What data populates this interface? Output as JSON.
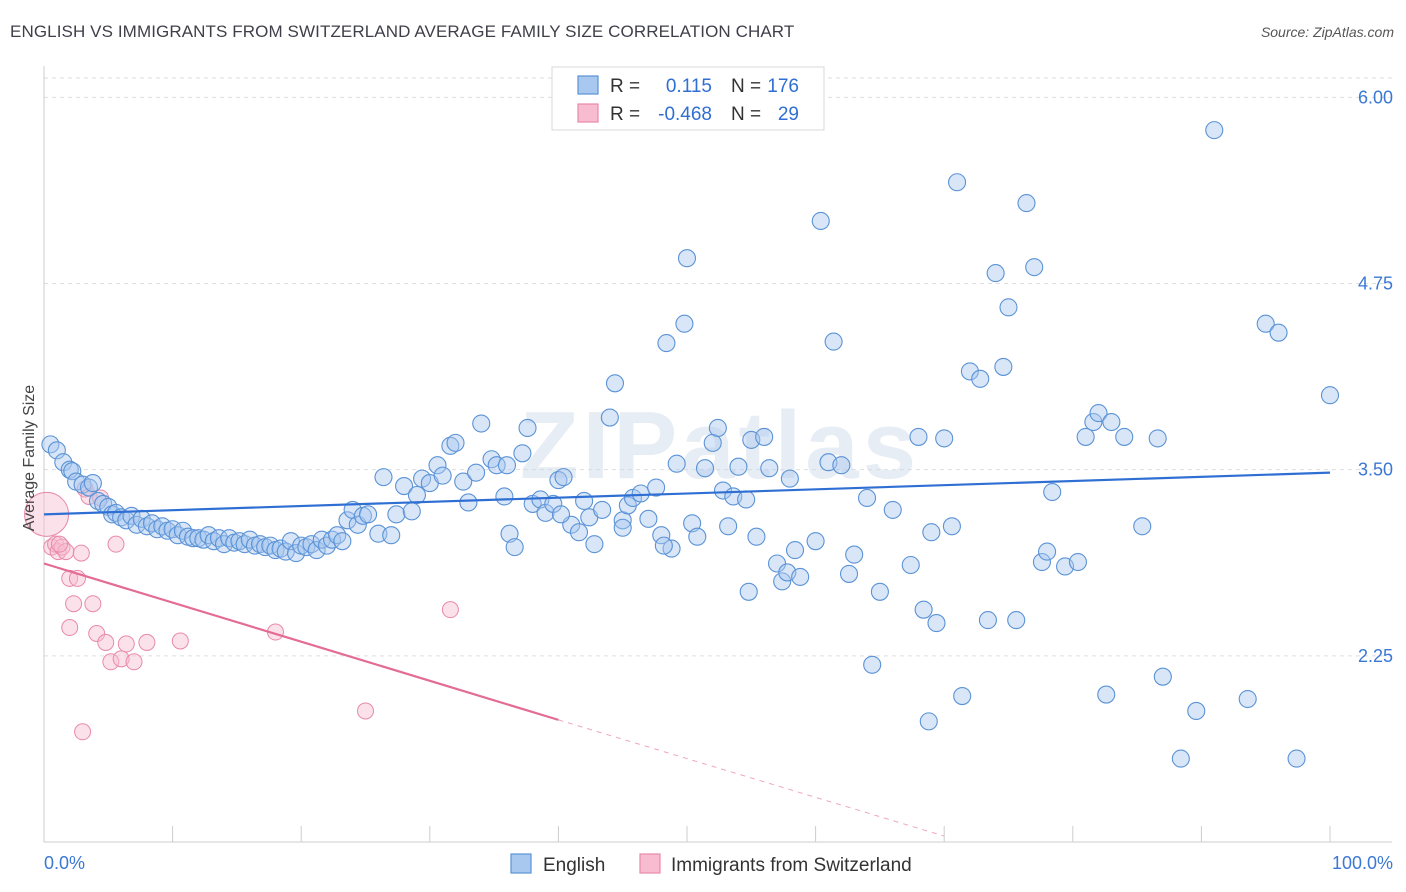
{
  "header": {
    "title": "ENGLISH VS IMMIGRANTS FROM SWITZERLAND AVERAGE FAMILY SIZE CORRELATION CHART",
    "source": "Source: ZipAtlas.com"
  },
  "watermark": "ZIPatlas",
  "colors": {
    "english_fill": "#a9c8f0",
    "english_stroke": "#5b93d6",
    "english_line": "#2f6fd3",
    "swiss_fill": "#f7bcd0",
    "swiss_stroke": "#e88aa8",
    "swiss_line": "#e36b94",
    "tick_label": "#3b78d4",
    "grid": "#dedede"
  },
  "stats_legend": {
    "rows": [
      {
        "r_label": "R =",
        "r_value": "0.115",
        "n_label": "N =",
        "n_value": "176"
      },
      {
        "r_label": "R =",
        "r_value": "-0.468",
        "n_label": "N =",
        "n_value": "29"
      }
    ]
  },
  "bottom_legend": {
    "items": [
      {
        "label": "English"
      },
      {
        "label": "Immigrants from Switzerland"
      }
    ]
  },
  "chart_data": {
    "type": "scatter",
    "title": "ENGLISH VS IMMIGRANTS FROM SWITZERLAND AVERAGE FAMILY SIZE CORRELATION CHART",
    "xlabel": "",
    "ylabel": "Average Family Size",
    "xlim": [
      0,
      100
    ],
    "ylim": [
      1.0,
      6.13
    ],
    "x_tick_labels": [
      "0.0%",
      "100.0%"
    ],
    "y_ticks": [
      2.25,
      3.5,
      4.75,
      6.0
    ],
    "y_tick_labels": [
      "2.25",
      "3.50",
      "4.75",
      "6.00"
    ],
    "grid": "horizontal dashed",
    "legend_placement": "bottom-center",
    "series": [
      {
        "name": "English",
        "R": 0.115,
        "N": 176,
        "trend": {
          "x": [
            0,
            100
          ],
          "y": [
            3.2,
            3.48
          ]
        },
        "points": [
          [
            0.5,
            3.67
          ],
          [
            1.0,
            3.63
          ],
          [
            1.5,
            3.55
          ],
          [
            2.0,
            3.5
          ],
          [
            2.2,
            3.49
          ],
          [
            2.5,
            3.42
          ],
          [
            3.0,
            3.4
          ],
          [
            3.5,
            3.38
          ],
          [
            3.8,
            3.41
          ],
          [
            4.2,
            3.29
          ],
          [
            4.6,
            3.27
          ],
          [
            5.0,
            3.25
          ],
          [
            5.3,
            3.2
          ],
          [
            5.6,
            3.21
          ],
          [
            6.0,
            3.18
          ],
          [
            6.4,
            3.16
          ],
          [
            6.8,
            3.19
          ],
          [
            7.2,
            3.13
          ],
          [
            7.6,
            3.17
          ],
          [
            8.0,
            3.12
          ],
          [
            8.4,
            3.14
          ],
          [
            8.8,
            3.1
          ],
          [
            9.2,
            3.12
          ],
          [
            9.6,
            3.09
          ],
          [
            10.0,
            3.1
          ],
          [
            10.4,
            3.06
          ],
          [
            10.8,
            3.09
          ],
          [
            11.2,
            3.05
          ],
          [
            11.6,
            3.04
          ],
          [
            12.0,
            3.04
          ],
          [
            12.4,
            3.03
          ],
          [
            12.8,
            3.06
          ],
          [
            13.2,
            3.02
          ],
          [
            13.6,
            3.04
          ],
          [
            14.0,
            3.0
          ],
          [
            14.4,
            3.04
          ],
          [
            14.8,
            3.01
          ],
          [
            15.2,
            3.02
          ],
          [
            15.6,
            3.0
          ],
          [
            16.0,
            3.03
          ],
          [
            16.4,
            2.99
          ],
          [
            16.8,
            3.0
          ],
          [
            17.2,
            2.98
          ],
          [
            17.6,
            2.99
          ],
          [
            18.0,
            2.96
          ],
          [
            18.4,
            2.97
          ],
          [
            18.8,
            2.95
          ],
          [
            19.2,
            3.02
          ],
          [
            19.6,
            2.94
          ],
          [
            20.0,
            2.99
          ],
          [
            20.4,
            2.98
          ],
          [
            20.8,
            3.0
          ],
          [
            21.2,
            2.96
          ],
          [
            21.6,
            3.03
          ],
          [
            22.0,
            2.99
          ],
          [
            22.4,
            3.03
          ],
          [
            22.8,
            3.06
          ],
          [
            23.2,
            3.02
          ],
          [
            23.6,
            3.16
          ],
          [
            24.0,
            3.23
          ],
          [
            24.4,
            3.13
          ],
          [
            24.8,
            3.19
          ],
          [
            25.2,
            3.2
          ],
          [
            26.0,
            3.07
          ],
          [
            26.4,
            3.45
          ],
          [
            27.0,
            3.06
          ],
          [
            27.4,
            3.2
          ],
          [
            28.0,
            3.39
          ],
          [
            28.6,
            3.22
          ],
          [
            29.0,
            3.33
          ],
          [
            29.4,
            3.44
          ],
          [
            30.0,
            3.41
          ],
          [
            30.6,
            3.53
          ],
          [
            31.0,
            3.46
          ],
          [
            31.6,
            3.66
          ],
          [
            32.0,
            3.68
          ],
          [
            32.6,
            3.42
          ],
          [
            33.0,
            3.28
          ],
          [
            33.6,
            3.48
          ],
          [
            34.0,
            3.81
          ],
          [
            34.8,
            3.57
          ],
          [
            35.2,
            3.53
          ],
          [
            35.8,
            3.32
          ],
          [
            36.2,
            3.07
          ],
          [
            36.6,
            2.98
          ],
          [
            37.2,
            3.61
          ],
          [
            37.6,
            3.78
          ],
          [
            38.0,
            3.27
          ],
          [
            38.6,
            3.3
          ],
          [
            39.0,
            3.21
          ],
          [
            39.6,
            3.27
          ],
          [
            40.0,
            3.43
          ],
          [
            40.4,
            3.45
          ],
          [
            41.0,
            3.13
          ],
          [
            41.6,
            3.08
          ],
          [
            42.0,
            3.29
          ],
          [
            42.4,
            3.18
          ],
          [
            42.8,
            3.0
          ],
          [
            43.4,
            3.23
          ],
          [
            44.0,
            3.85
          ],
          [
            44.4,
            4.08
          ],
          [
            45.0,
            3.16
          ],
          [
            45.4,
            3.26
          ],
          [
            45.8,
            3.31
          ],
          [
            46.4,
            3.34
          ],
          [
            47.0,
            3.17
          ],
          [
            47.6,
            3.38
          ],
          [
            48.0,
            3.06
          ],
          [
            48.4,
            4.35
          ],
          [
            48.8,
            2.97
          ],
          [
            49.2,
            3.54
          ],
          [
            49.8,
            4.48
          ],
          [
            50.0,
            4.92
          ],
          [
            50.4,
            3.14
          ],
          [
            50.8,
            3.05
          ],
          [
            51.4,
            3.51
          ],
          [
            52.0,
            3.68
          ],
          [
            52.4,
            3.78
          ],
          [
            52.8,
            3.36
          ],
          [
            53.2,
            3.12
          ],
          [
            53.6,
            3.32
          ],
          [
            54.0,
            3.52
          ],
          [
            54.6,
            3.3
          ],
          [
            55.0,
            3.7
          ],
          [
            55.4,
            3.05
          ],
          [
            56.0,
            3.72
          ],
          [
            56.4,
            3.51
          ],
          [
            57.0,
            2.87
          ],
          [
            57.4,
            2.75
          ],
          [
            57.8,
            2.81
          ],
          [
            58.4,
            2.96
          ],
          [
            58.8,
            2.78
          ],
          [
            60.0,
            3.02
          ],
          [
            60.4,
            5.17
          ],
          [
            61.0,
            3.55
          ],
          [
            61.4,
            4.36
          ],
          [
            62.0,
            3.53
          ],
          [
            62.6,
            2.8
          ],
          [
            63.0,
            2.93
          ],
          [
            64.0,
            3.31
          ],
          [
            64.4,
            2.19
          ],
          [
            65.0,
            2.68
          ],
          [
            66.0,
            3.23
          ],
          [
            67.4,
            2.86
          ],
          [
            68.0,
            3.72
          ],
          [
            68.4,
            2.56
          ],
          [
            68.8,
            1.81
          ],
          [
            69.0,
            3.08
          ],
          [
            69.4,
            2.47
          ],
          [
            70.0,
            3.71
          ],
          [
            70.6,
            3.12
          ],
          [
            71.0,
            5.43
          ],
          [
            71.4,
            1.98
          ],
          [
            72.0,
            4.16
          ],
          [
            72.8,
            4.11
          ],
          [
            73.4,
            2.49
          ],
          [
            74.0,
            4.82
          ],
          [
            74.6,
            4.19
          ],
          [
            75.0,
            4.59
          ],
          [
            75.6,
            2.49
          ],
          [
            76.4,
            5.29
          ],
          [
            77.0,
            4.86
          ],
          [
            77.6,
            2.88
          ],
          [
            78.0,
            2.95
          ],
          [
            78.4,
            3.35
          ],
          [
            79.4,
            2.85
          ],
          [
            80.4,
            2.88
          ],
          [
            81.0,
            3.72
          ],
          [
            81.6,
            3.82
          ],
          [
            82.0,
            3.88
          ],
          [
            82.6,
            1.99
          ],
          [
            83.0,
            3.82
          ],
          [
            84.0,
            3.72
          ],
          [
            85.4,
            3.12
          ],
          [
            86.6,
            3.71
          ],
          [
            87.0,
            2.11
          ],
          [
            88.4,
            1.56
          ],
          [
            89.6,
            1.88
          ],
          [
            91.0,
            5.78
          ],
          [
            93.6,
            1.96
          ],
          [
            95.0,
            4.48
          ],
          [
            96.0,
            4.42
          ],
          [
            97.4,
            1.56
          ],
          [
            100.0,
            4.0
          ],
          [
            54.8,
            2.68
          ],
          [
            48.2,
            2.99
          ],
          [
            45.0,
            3.11
          ],
          [
            40.2,
            3.2
          ],
          [
            36.0,
            3.53
          ],
          [
            58.0,
            3.44
          ]
        ]
      },
      {
        "name": "Immigrants from Switzerland",
        "R": -0.468,
        "N": 29,
        "trend": {
          "x": [
            0,
            40
          ],
          "y": [
            2.87,
            1.82
          ],
          "dashed_extension": {
            "x": [
              40,
              70
            ],
            "y": [
              1.82,
              1.04
            ]
          }
        },
        "points": [
          [
            0.2,
            3.2
          ],
          [
            0.6,
            2.98
          ],
          [
            0.9,
            3.0
          ],
          [
            1.1,
            2.95
          ],
          [
            1.4,
            2.98
          ],
          [
            1.7,
            2.95
          ],
          [
            2.0,
            2.77
          ],
          [
            2.3,
            2.6
          ],
          [
            2.6,
            2.77
          ],
          [
            2.9,
            2.94
          ],
          [
            3.2,
            3.37
          ],
          [
            3.5,
            3.32
          ],
          [
            3.8,
            2.6
          ],
          [
            4.1,
            2.4
          ],
          [
            4.4,
            3.31
          ],
          [
            4.8,
            2.34
          ],
          [
            5.2,
            2.21
          ],
          [
            5.6,
            3.0
          ],
          [
            6.0,
            2.23
          ],
          [
            6.4,
            2.33
          ],
          [
            7.0,
            2.21
          ],
          [
            8.0,
            2.34
          ],
          [
            10.6,
            2.35
          ],
          [
            18.0,
            2.41
          ],
          [
            25.0,
            1.88
          ],
          [
            31.6,
            2.56
          ],
          [
            3.0,
            1.74
          ],
          [
            2.0,
            2.44
          ],
          [
            1.2,
            3.0
          ]
        ]
      }
    ]
  }
}
